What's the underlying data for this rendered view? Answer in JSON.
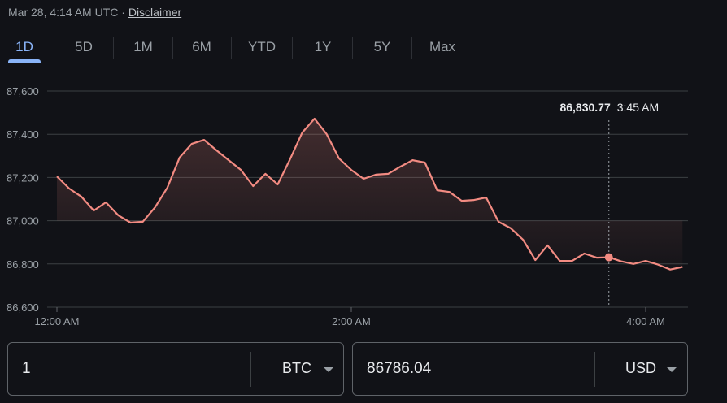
{
  "header": {
    "timestamp": "Mar 28, 4:14 AM UTC ·",
    "disclaimer": "Disclaimer"
  },
  "tabs": [
    {
      "label": "1D",
      "active": true
    },
    {
      "label": "5D"
    },
    {
      "label": "1M"
    },
    {
      "label": "6M"
    },
    {
      "label": "YTD"
    },
    {
      "label": "1Y"
    },
    {
      "label": "5Y"
    },
    {
      "label": "Max"
    }
  ],
  "accent": "#8ab4f8",
  "line_color": "#f28b82",
  "tooltip": {
    "value": "86,830.77",
    "time": "3:45 AM"
  },
  "converter": {
    "from_value": "1",
    "from_currency": "BTC",
    "to_value": "86786.04",
    "to_currency": "USD"
  },
  "chart_data": {
    "type": "line",
    "ylim": [
      86600,
      87600
    ],
    "yticks": [
      "87,600",
      "87,400",
      "87,200",
      "87,000",
      "86,800",
      "86,600"
    ],
    "ytick_values": [
      87600,
      87400,
      87200,
      87000,
      86800,
      86600
    ],
    "xticks": [
      "12:00 AM",
      "2:00 AM",
      "4:00 AM"
    ],
    "grid": true,
    "x": [
      "12:00 AM",
      "12:05 AM",
      "12:10 AM",
      "12:15 AM",
      "12:20 AM",
      "12:25 AM",
      "12:30 AM",
      "12:35 AM",
      "12:40 AM",
      "12:45 AM",
      "12:50 AM",
      "12:55 AM",
      "1:00 AM",
      "1:05 AM",
      "1:10 AM",
      "1:15 AM",
      "1:20 AM",
      "1:25 AM",
      "1:30 AM",
      "1:35 AM",
      "1:40 AM",
      "1:45 AM",
      "1:50 AM",
      "1:55 AM",
      "2:00 AM",
      "2:05 AM",
      "2:10 AM",
      "2:15 AM",
      "2:20 AM",
      "2:25 AM",
      "2:30 AM",
      "2:35 AM",
      "2:40 AM",
      "2:45 AM",
      "2:50 AM",
      "2:55 AM",
      "3:00 AM",
      "3:05 AM",
      "3:10 AM",
      "3:15 AM",
      "3:20 AM",
      "3:25 AM",
      "3:30 AM",
      "3:35 AM",
      "3:40 AM",
      "3:45 AM",
      "3:50 AM",
      "3:55 AM",
      "4:00 AM",
      "4:05 AM",
      "4:10 AM",
      "4:15 AM"
    ],
    "values": [
      87205,
      87149,
      87111,
      87047,
      87085,
      87025,
      86991,
      86995,
      87062,
      87153,
      87292,
      87356,
      87374,
      87326,
      87280,
      87235,
      87160,
      87217,
      87168,
      87284,
      87408,
      87472,
      87400,
      87288,
      87235,
      87194,
      87213,
      87217,
      87250,
      87280,
      87269,
      87141,
      87133,
      87092,
      87096,
      87107,
      86995,
      86965,
      86912,
      86818,
      86886,
      86814,
      86814,
      86848,
      86829,
      86830.77,
      86812,
      86800,
      86814,
      86797,
      86774,
      86786
    ],
    "highlight_index": 45
  }
}
